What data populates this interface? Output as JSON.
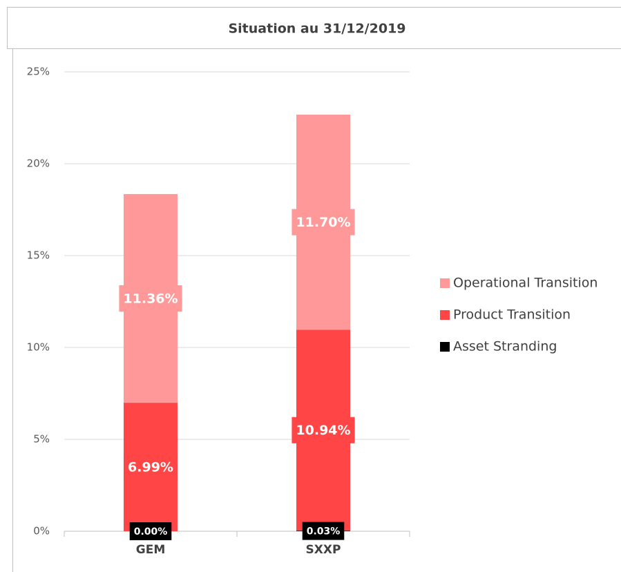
{
  "chart_data": {
    "type": "stacked_bar",
    "title": "Situation au 31/12/2019",
    "categories": [
      "GEM",
      "SXXP"
    ],
    "series": [
      {
        "name": "Asset Stranding",
        "color": "#000000",
        "values": [
          0.0,
          0.03
        ],
        "value_labels": [
          "0.00%",
          "0.03%"
        ]
      },
      {
        "name": "Product Transition",
        "color": "#ff4545",
        "values": [
          6.99,
          10.94
        ],
        "value_labels": [
          "6.99%",
          "10.94%"
        ]
      },
      {
        "name": "Operational Transition",
        "color": "#ff9999",
        "values": [
          11.36,
          11.7
        ],
        "value_labels": [
          "11.36%",
          "11.70%"
        ]
      }
    ],
    "ylim": [
      0,
      25
    ],
    "yticks": [
      {
        "value": 0,
        "label": "0%"
      },
      {
        "value": 5,
        "label": "5%"
      },
      {
        "value": 10,
        "label": "10%"
      },
      {
        "value": 15,
        "label": "15%"
      },
      {
        "value": 20,
        "label": "20%"
      },
      {
        "value": 25,
        "label": "25%"
      }
    ],
    "grid": true,
    "legend": "right"
  }
}
